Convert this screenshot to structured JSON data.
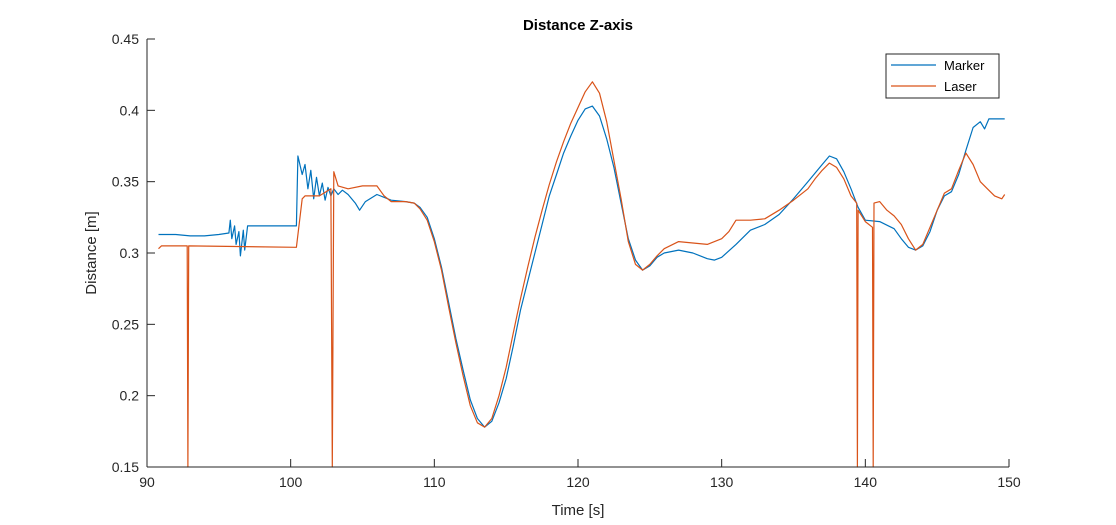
{
  "chart_data": {
    "type": "line",
    "title": "Distance Z-axis",
    "xlabel": "Time [s]",
    "ylabel": "Distance [m]",
    "xlim": [
      90,
      150
    ],
    "ylim": [
      0.15,
      0.45
    ],
    "xticks": [
      90,
      100,
      110,
      120,
      130,
      140,
      150
    ],
    "yticks": [
      0.15,
      0.2,
      0.25,
      0.3,
      0.35,
      0.4,
      0.45
    ],
    "xtick_labels": [
      "90",
      "100",
      "110",
      "120",
      "130",
      "140",
      "150"
    ],
    "ytick_labels": [
      "0.15",
      "0.2",
      "0.25",
      "0.3",
      "0.35",
      "0.4",
      "0.45"
    ],
    "grid": false,
    "legend": "top-right",
    "series": [
      {
        "name": "Marker",
        "color": "#0072BD",
        "points": [
          [
            90.8,
            0.313
          ],
          [
            92,
            0.313
          ],
          [
            93,
            0.312
          ],
          [
            94,
            0.312
          ],
          [
            95,
            0.313
          ],
          [
            95.7,
            0.314
          ],
          [
            95.8,
            0.323
          ],
          [
            95.9,
            0.31
          ],
          [
            96.1,
            0.319
          ],
          [
            96.2,
            0.306
          ],
          [
            96.4,
            0.315
          ],
          [
            96.5,
            0.298
          ],
          [
            96.7,
            0.316
          ],
          [
            96.8,
            0.302
          ],
          [
            97,
            0.319
          ],
          [
            98,
            0.319
          ],
          [
            99,
            0.319
          ],
          [
            100,
            0.319
          ],
          [
            100.4,
            0.319
          ],
          [
            100.5,
            0.368
          ],
          [
            100.8,
            0.355
          ],
          [
            101,
            0.362
          ],
          [
            101.2,
            0.345
          ],
          [
            101.4,
            0.358
          ],
          [
            101.6,
            0.338
          ],
          [
            101.8,
            0.353
          ],
          [
            102,
            0.34
          ],
          [
            102.2,
            0.349
          ],
          [
            102.4,
            0.337
          ],
          [
            102.6,
            0.346
          ],
          [
            102.8,
            0.34
          ],
          [
            103,
            0.345
          ],
          [
            103.3,
            0.341
          ],
          [
            103.6,
            0.344
          ],
          [
            104,
            0.341
          ],
          [
            104.5,
            0.335
          ],
          [
            104.8,
            0.33
          ],
          [
            105.2,
            0.336
          ],
          [
            106,
            0.341
          ],
          [
            107,
            0.337
          ],
          [
            108,
            0.336
          ],
          [
            108.6,
            0.335
          ],
          [
            109,
            0.332
          ],
          [
            109.5,
            0.325
          ],
          [
            110,
            0.31
          ],
          [
            110.5,
            0.29
          ],
          [
            111,
            0.265
          ],
          [
            111.5,
            0.24
          ],
          [
            112,
            0.218
          ],
          [
            112.5,
            0.197
          ],
          [
            113,
            0.184
          ],
          [
            113.5,
            0.178
          ],
          [
            114,
            0.182
          ],
          [
            114.5,
            0.195
          ],
          [
            115,
            0.212
          ],
          [
            115.5,
            0.235
          ],
          [
            116,
            0.26
          ],
          [
            116.5,
            0.28
          ],
          [
            117,
            0.3
          ],
          [
            117.5,
            0.32
          ],
          [
            118,
            0.34
          ],
          [
            118.5,
            0.355
          ],
          [
            119,
            0.37
          ],
          [
            119.5,
            0.382
          ],
          [
            120,
            0.393
          ],
          [
            120.5,
            0.401
          ],
          [
            121,
            0.403
          ],
          [
            121.5,
            0.396
          ],
          [
            122,
            0.38
          ],
          [
            122.5,
            0.36
          ],
          [
            123,
            0.335
          ],
          [
            123.5,
            0.31
          ],
          [
            124,
            0.295
          ],
          [
            124.5,
            0.288
          ],
          [
            125,
            0.291
          ],
          [
            125.5,
            0.297
          ],
          [
            126,
            0.3
          ],
          [
            127,
            0.302
          ],
          [
            128,
            0.3
          ],
          [
            129,
            0.296
          ],
          [
            129.5,
            0.295
          ],
          [
            130,
            0.297
          ],
          [
            131,
            0.306
          ],
          [
            132,
            0.316
          ],
          [
            133,
            0.32
          ],
          [
            134,
            0.327
          ],
          [
            135,
            0.338
          ],
          [
            136,
            0.35
          ],
          [
            137,
            0.362
          ],
          [
            137.5,
            0.368
          ],
          [
            138,
            0.366
          ],
          [
            138.5,
            0.357
          ],
          [
            139,
            0.345
          ],
          [
            139.5,
            0.332
          ],
          [
            140,
            0.323
          ],
          [
            141,
            0.322
          ],
          [
            142,
            0.317
          ],
          [
            142.5,
            0.31
          ],
          [
            143,
            0.304
          ],
          [
            143.5,
            0.302
          ],
          [
            144,
            0.305
          ],
          [
            144.5,
            0.315
          ],
          [
            145,
            0.33
          ],
          [
            145.5,
            0.34
          ],
          [
            146,
            0.343
          ],
          [
            146.5,
            0.355
          ],
          [
            147,
            0.372
          ],
          [
            147.5,
            0.388
          ],
          [
            148,
            0.392
          ],
          [
            148.3,
            0.387
          ],
          [
            148.6,
            0.394
          ],
          [
            149.7,
            0.394
          ]
        ]
      },
      {
        "name": "Laser",
        "color": "#D95319",
        "points": [
          [
            90.8,
            0.303
          ],
          [
            91,
            0.305
          ],
          [
            92.8,
            0.305
          ],
          [
            92.85,
            0.15
          ],
          [
            92.9,
            0.305
          ],
          [
            100.4,
            0.304
          ],
          [
            100.8,
            0.338
          ],
          [
            101,
            0.34
          ],
          [
            102,
            0.34
          ],
          [
            102.8,
            0.345
          ],
          [
            102.9,
            0.15
          ],
          [
            103,
            0.357
          ],
          [
            103.3,
            0.347
          ],
          [
            104,
            0.345
          ],
          [
            105,
            0.347
          ],
          [
            106,
            0.347
          ],
          [
            106.5,
            0.34
          ],
          [
            107,
            0.336
          ],
          [
            108,
            0.336
          ],
          [
            108.6,
            0.335
          ],
          [
            109,
            0.331
          ],
          [
            109.5,
            0.323
          ],
          [
            110,
            0.308
          ],
          [
            110.5,
            0.288
          ],
          [
            111,
            0.262
          ],
          [
            111.5,
            0.237
          ],
          [
            112,
            0.214
          ],
          [
            112.5,
            0.193
          ],
          [
            113,
            0.181
          ],
          [
            113.5,
            0.178
          ],
          [
            114,
            0.184
          ],
          [
            114.5,
            0.2
          ],
          [
            115,
            0.22
          ],
          [
            115.5,
            0.244
          ],
          [
            116,
            0.268
          ],
          [
            116.5,
            0.29
          ],
          [
            117,
            0.311
          ],
          [
            117.5,
            0.33
          ],
          [
            118,
            0.348
          ],
          [
            118.5,
            0.364
          ],
          [
            119,
            0.378
          ],
          [
            119.5,
            0.391
          ],
          [
            120,
            0.402
          ],
          [
            120.5,
            0.413
          ],
          [
            121,
            0.42
          ],
          [
            121.5,
            0.412
          ],
          [
            122,
            0.392
          ],
          [
            122.5,
            0.365
          ],
          [
            123,
            0.338
          ],
          [
            123.5,
            0.308
          ],
          [
            124,
            0.292
          ],
          [
            124.5,
            0.288
          ],
          [
            125,
            0.292
          ],
          [
            125.5,
            0.298
          ],
          [
            126,
            0.303
          ],
          [
            127,
            0.308
          ],
          [
            128,
            0.307
          ],
          [
            129,
            0.306
          ],
          [
            130,
            0.31
          ],
          [
            130.5,
            0.315
          ],
          [
            131,
            0.323
          ],
          [
            132,
            0.323
          ],
          [
            133,
            0.324
          ],
          [
            134,
            0.33
          ],
          [
            135,
            0.337
          ],
          [
            136,
            0.345
          ],
          [
            136.5,
            0.352
          ],
          [
            137,
            0.358
          ],
          [
            137.5,
            0.363
          ],
          [
            138,
            0.36
          ],
          [
            138.5,
            0.352
          ],
          [
            139,
            0.34
          ],
          [
            139.4,
            0.335
          ],
          [
            139.45,
            0.15
          ],
          [
            139.5,
            0.33
          ],
          [
            140,
            0.322
          ],
          [
            140.5,
            0.318
          ],
          [
            140.55,
            0.15
          ],
          [
            140.6,
            0.335
          ],
          [
            141,
            0.336
          ],
          [
            141.5,
            0.33
          ],
          [
            142,
            0.326
          ],
          [
            142.5,
            0.32
          ],
          [
            143,
            0.31
          ],
          [
            143.5,
            0.302
          ],
          [
            144,
            0.306
          ],
          [
            144.5,
            0.318
          ],
          [
            145,
            0.33
          ],
          [
            145.5,
            0.342
          ],
          [
            146,
            0.345
          ],
          [
            146.5,
            0.358
          ],
          [
            147,
            0.37
          ],
          [
            147.5,
            0.362
          ],
          [
            148,
            0.35
          ],
          [
            148.5,
            0.345
          ],
          [
            149,
            0.34
          ],
          [
            149.5,
            0.338
          ],
          [
            149.7,
            0.341
          ]
        ]
      }
    ]
  }
}
